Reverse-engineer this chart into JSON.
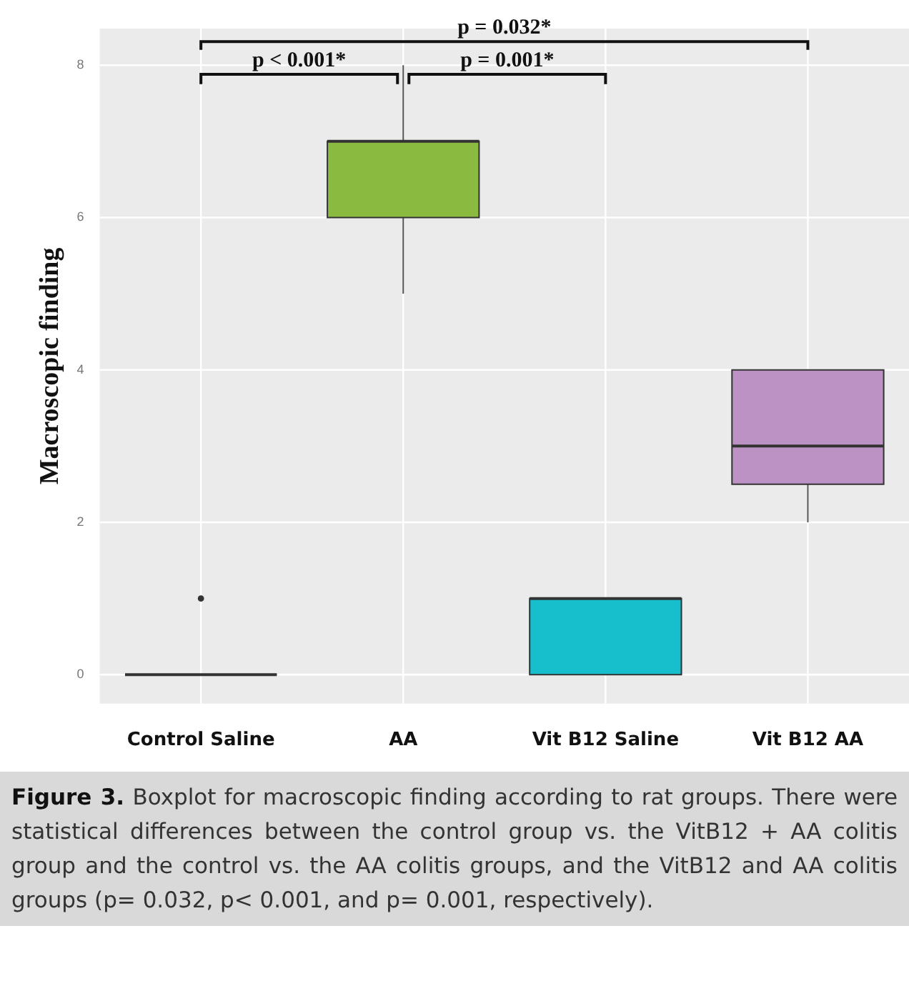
{
  "chart_data": {
    "type": "box",
    "ylabel": "Macroscopic finding",
    "categories": [
      "Control Saline",
      "AA",
      "Vit B12 Saline",
      "Vit B12 AA"
    ],
    "colors": [
      "#333333",
      "#8aba3f",
      "#17becb",
      "#bc92c4"
    ],
    "boxes": [
      {
        "low": 0,
        "q1": 0,
        "median": 0,
        "q3": 0,
        "high": 0,
        "outliers": [
          1
        ]
      },
      {
        "low": 5,
        "q1": 6,
        "median": 7,
        "q3": 7,
        "high": 8
      },
      {
        "low": 0,
        "q1": 0,
        "median": 1,
        "q3": 1,
        "high": 1
      },
      {
        "low": 2,
        "q1": 2.5,
        "median": 3,
        "q3": 4,
        "high": 4
      }
    ],
    "ylim": [
      -0.38,
      8.48
    ],
    "yticks": [
      0,
      2,
      4,
      6,
      8
    ],
    "grid": true,
    "legend": false,
    "annotations": [
      "p = 0.032*",
      "p < 0.001*",
      "p = 0.001*",
      "Figure 3. Boxplot for macroscopic finding according to rat groups. There were statistical differences between the control group vs. the VitB12 + AA colitis group and the control vs. the AA colitis groups, and the VitB12 and AA colitis groups (p= 0.032, p< 0.001, and p= 0.001, respectively)."
    ]
  }
}
